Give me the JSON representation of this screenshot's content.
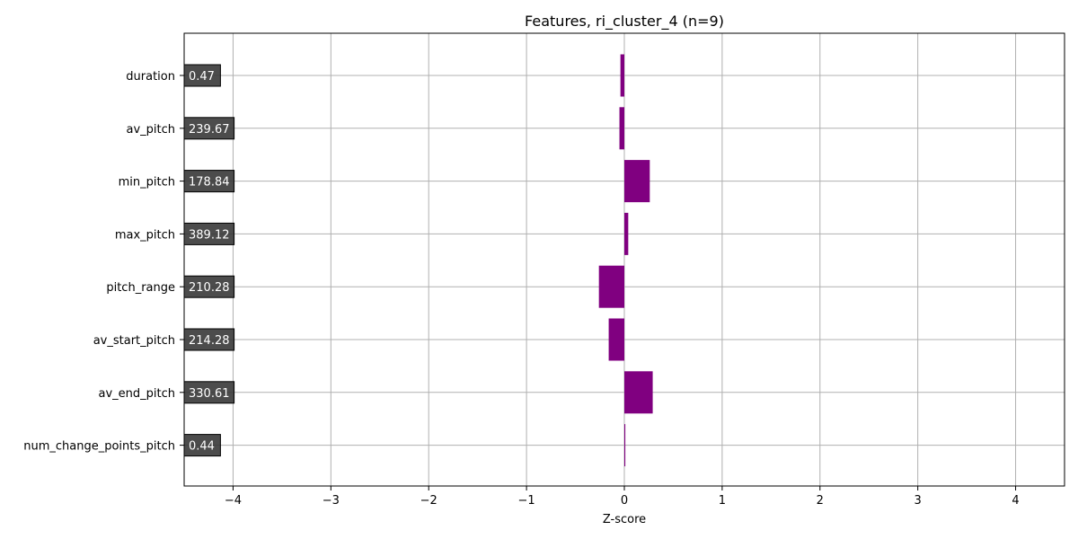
{
  "chart_data": {
    "type": "bar",
    "orientation": "horizontal",
    "title": "Features, ri_cluster_4 (n=9)",
    "xlabel": "Z-score",
    "ylabel": "",
    "xlim": [
      -4.5,
      4.5
    ],
    "xticks": [
      -4,
      -3,
      -2,
      -1,
      0,
      1,
      2,
      3,
      4
    ],
    "xtick_labels": [
      "−4",
      "−3",
      "−2",
      "−1",
      "0",
      "1",
      "2",
      "3",
      "4"
    ],
    "grid": true,
    "bar_color": "#800080",
    "value_box_color": "#333333",
    "categories": [
      "duration",
      "av_pitch",
      "min_pitch",
      "max_pitch",
      "pitch_range",
      "av_start_pitch",
      "av_end_pitch",
      "num_change_points_pitch"
    ],
    "values": [
      -0.04,
      -0.05,
      0.26,
      0.04,
      -0.26,
      -0.16,
      0.29,
      0.01
    ],
    "value_labels": [
      "0.47",
      "239.67",
      "178.84",
      "389.12",
      "210.28",
      "214.28",
      "330.61",
      "0.44"
    ]
  }
}
